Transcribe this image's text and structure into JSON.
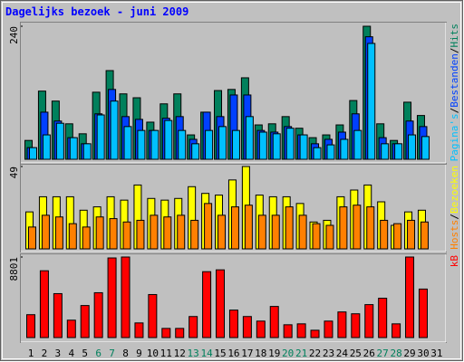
{
  "title": "Dagelijks bezoek - juni 2009",
  "legend_separator": "/",
  "chart_data": [
    {
      "type": "bar",
      "ylim": [
        0,
        240
      ],
      "yticks": [
        240
      ],
      "series": [
        {
          "name": "Hits",
          "color": "#00805c",
          "values": [
            34,
            123,
            105,
            64,
            46,
            121,
            160,
            118,
            111,
            67,
            100,
            118,
            44,
            85,
            124,
            126,
            147,
            62,
            64,
            77,
            56,
            39,
            44,
            62,
            106,
            240,
            64,
            34,
            103,
            79,
            0
          ]
        },
        {
          "name": "Bestanden",
          "color": "#0040ff",
          "values": [
            21,
            85,
            69,
            39,
            28,
            82,
            126,
            77,
            72,
            52,
            74,
            77,
            36,
            85,
            77,
            116,
            116,
            52,
            49,
            59,
            44,
            28,
            36,
            49,
            82,
            221,
            39,
            28,
            69,
            59,
            0
          ]
        },
        {
          "name": "Pagina's",
          "color": "#00c0ff",
          "values": [
            21,
            44,
            65,
            39,
            28,
            80,
            105,
            59,
            52,
            52,
            70,
            52,
            28,
            52,
            59,
            52,
            77,
            49,
            46,
            56,
            44,
            21,
            26,
            36,
            52,
            209,
            28,
            28,
            44,
            41,
            0
          ]
        }
      ]
    },
    {
      "type": "bar",
      "ylim": [
        0,
        49
      ],
      "yticks": [
        49
      ],
      "series": [
        {
          "name": "Bezoeken",
          "color": "#ffff00",
          "values": [
            22,
            31,
            31,
            31,
            23,
            25,
            31,
            29,
            38,
            30,
            29,
            30,
            37,
            33,
            32,
            41,
            49,
            32,
            31,
            31,
            27,
            16,
            17,
            31,
            35,
            38,
            28,
            14,
            22,
            23,
            0
          ]
        },
        {
          "name": "Hosts",
          "color": "#ff8000",
          "values": [
            13,
            20,
            19,
            15,
            13,
            19,
            18,
            16,
            17,
            20,
            19,
            20,
            17,
            27,
            20,
            25,
            26,
            20,
            20,
            25,
            20,
            15,
            14,
            25,
            26,
            25,
            17,
            15,
            17,
            16,
            0
          ]
        }
      ]
    },
    {
      "type": "bar",
      "ylim": [
        0,
        8801
      ],
      "yticks": [
        8801
      ],
      "categories": [
        "1",
        "2",
        "3",
        "4",
        "5",
        "6",
        "7",
        "8",
        "9",
        "10",
        "11",
        "12",
        "13",
        "14",
        "15",
        "16",
        "17",
        "18",
        "19",
        "20",
        "21",
        "22",
        "23",
        "24",
        "25",
        "26",
        "27",
        "28",
        "29",
        "30",
        "31"
      ],
      "category_colors": [
        "#000000",
        "#000000",
        "#000000",
        "#000000",
        "#000000",
        "#00805c",
        "#00805c",
        "#000000",
        "#000000",
        "#000000",
        "#000000",
        "#000000",
        "#00805c",
        "#00805c",
        "#000000",
        "#000000",
        "#000000",
        "#000000",
        "#000000",
        "#00805c",
        "#00805c",
        "#000000",
        "#000000",
        "#000000",
        "#000000",
        "#000000",
        "#00805c",
        "#00805c",
        "#000000",
        "#000000",
        "#000000"
      ],
      "series": [
        {
          "name": "kB",
          "color": "#ff0000",
          "values": [
            2500,
            7300,
            4800,
            1900,
            3500,
            4900,
            8700,
            8801,
            1600,
            4700,
            1000,
            1000,
            2300,
            7200,
            7400,
            3000,
            2300,
            1800,
            3400,
            1400,
            1500,
            800,
            1800,
            2800,
            2600,
            3600,
            4300,
            1500,
            8801,
            5300,
            0
          ]
        }
      ]
    }
  ]
}
